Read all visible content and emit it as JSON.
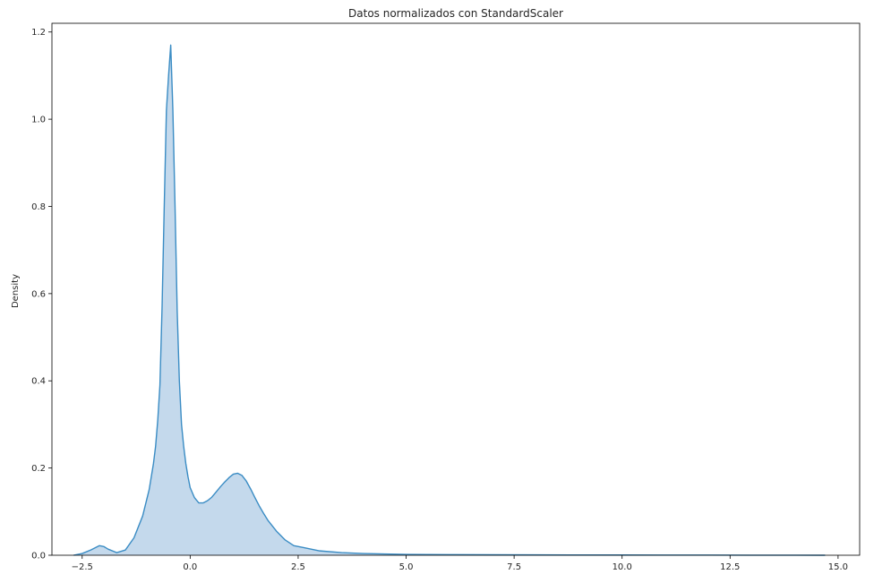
{
  "chart_data": {
    "type": "area",
    "title": "Datos normalizados con StandardScaler",
    "xlabel": "",
    "ylabel": "Density",
    "xlim": [
      -3.2,
      15.5
    ],
    "ylim": [
      0,
      1.22
    ],
    "xticks": [
      -2.5,
      0.0,
      2.5,
      5.0,
      7.5,
      10.0,
      12.5,
      15.0
    ],
    "xtick_labels": [
      "−2.5",
      "0.0",
      "2.5",
      "5.0",
      "7.5",
      "10.0",
      "12.5",
      "15.0"
    ],
    "yticks": [
      0.0,
      0.2,
      0.4,
      0.6,
      0.8,
      1.0,
      1.2
    ],
    "ytick_labels": [
      "0.0",
      "0.2",
      "0.4",
      "0.6",
      "0.8",
      "1.0",
      "1.2"
    ],
    "grid": false,
    "line_color": "#3a8cc4",
    "fill_color": "#c4d9ec",
    "series": [
      {
        "x": [
          -2.7,
          -2.5,
          -2.3,
          -2.1,
          -2.0,
          -1.9,
          -1.7,
          -1.5,
          -1.3,
          -1.1,
          -0.95,
          -0.85,
          -0.8,
          -0.75,
          -0.7,
          -0.65,
          -0.6,
          -0.55,
          -0.5,
          -0.45,
          -0.4,
          -0.35,
          -0.3,
          -0.25,
          -0.2,
          -0.15,
          -0.1,
          -0.05,
          0.0,
          0.1,
          0.2,
          0.3,
          0.4,
          0.5,
          0.6,
          0.7,
          0.8,
          0.9,
          1.0,
          1.1,
          1.2,
          1.3,
          1.4,
          1.5,
          1.6,
          1.7,
          1.8,
          2.0,
          2.2,
          2.4,
          2.6,
          3.0,
          3.5,
          4.0,
          4.5,
          5.0,
          6.0,
          7.0,
          8.0,
          9.0,
          10.0,
          11.0,
          12.0,
          13.0,
          14.0,
          14.7
        ],
        "y": [
          0.0,
          0.004,
          0.012,
          0.022,
          0.02,
          0.014,
          0.006,
          0.012,
          0.04,
          0.09,
          0.15,
          0.21,
          0.25,
          0.31,
          0.39,
          0.57,
          0.8,
          1.02,
          1.1,
          1.17,
          1.02,
          0.8,
          0.56,
          0.4,
          0.3,
          0.25,
          0.21,
          0.18,
          0.155,
          0.132,
          0.12,
          0.12,
          0.125,
          0.133,
          0.145,
          0.157,
          0.168,
          0.178,
          0.186,
          0.188,
          0.183,
          0.17,
          0.152,
          0.132,
          0.113,
          0.096,
          0.08,
          0.055,
          0.035,
          0.022,
          0.018,
          0.01,
          0.006,
          0.004,
          0.003,
          0.002,
          0.0015,
          0.001,
          0.0008,
          0.0006,
          0.0005,
          0.0004,
          0.0003,
          0.0002,
          0.0001,
          0.0
        ]
      }
    ]
  }
}
